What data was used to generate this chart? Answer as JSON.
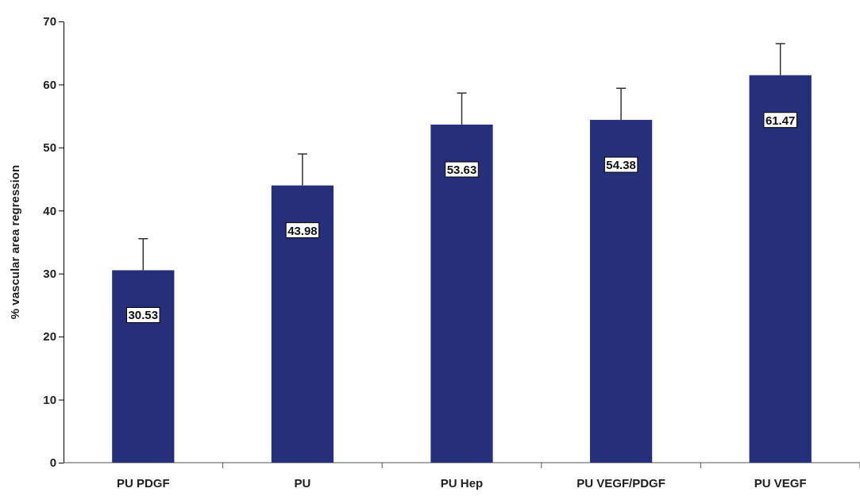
{
  "chart_data": {
    "type": "bar",
    "ylabel": "% vascular area regression",
    "categories": [
      "PU PDGF",
      "PU",
      "PU Hep",
      "PU VEGF/PDGF",
      "PU VEGF"
    ],
    "values": [
      30.53,
      43.98,
      53.63,
      54.38,
      61.47
    ],
    "errors": [
      5,
      5,
      5,
      5,
      5
    ],
    "color": "#262f7a",
    "data_labels": true,
    "grid": false,
    "ylim": [
      0,
      70
    ],
    "yticks": [
      0,
      10,
      20,
      30,
      40,
      50,
      60,
      70
    ]
  }
}
